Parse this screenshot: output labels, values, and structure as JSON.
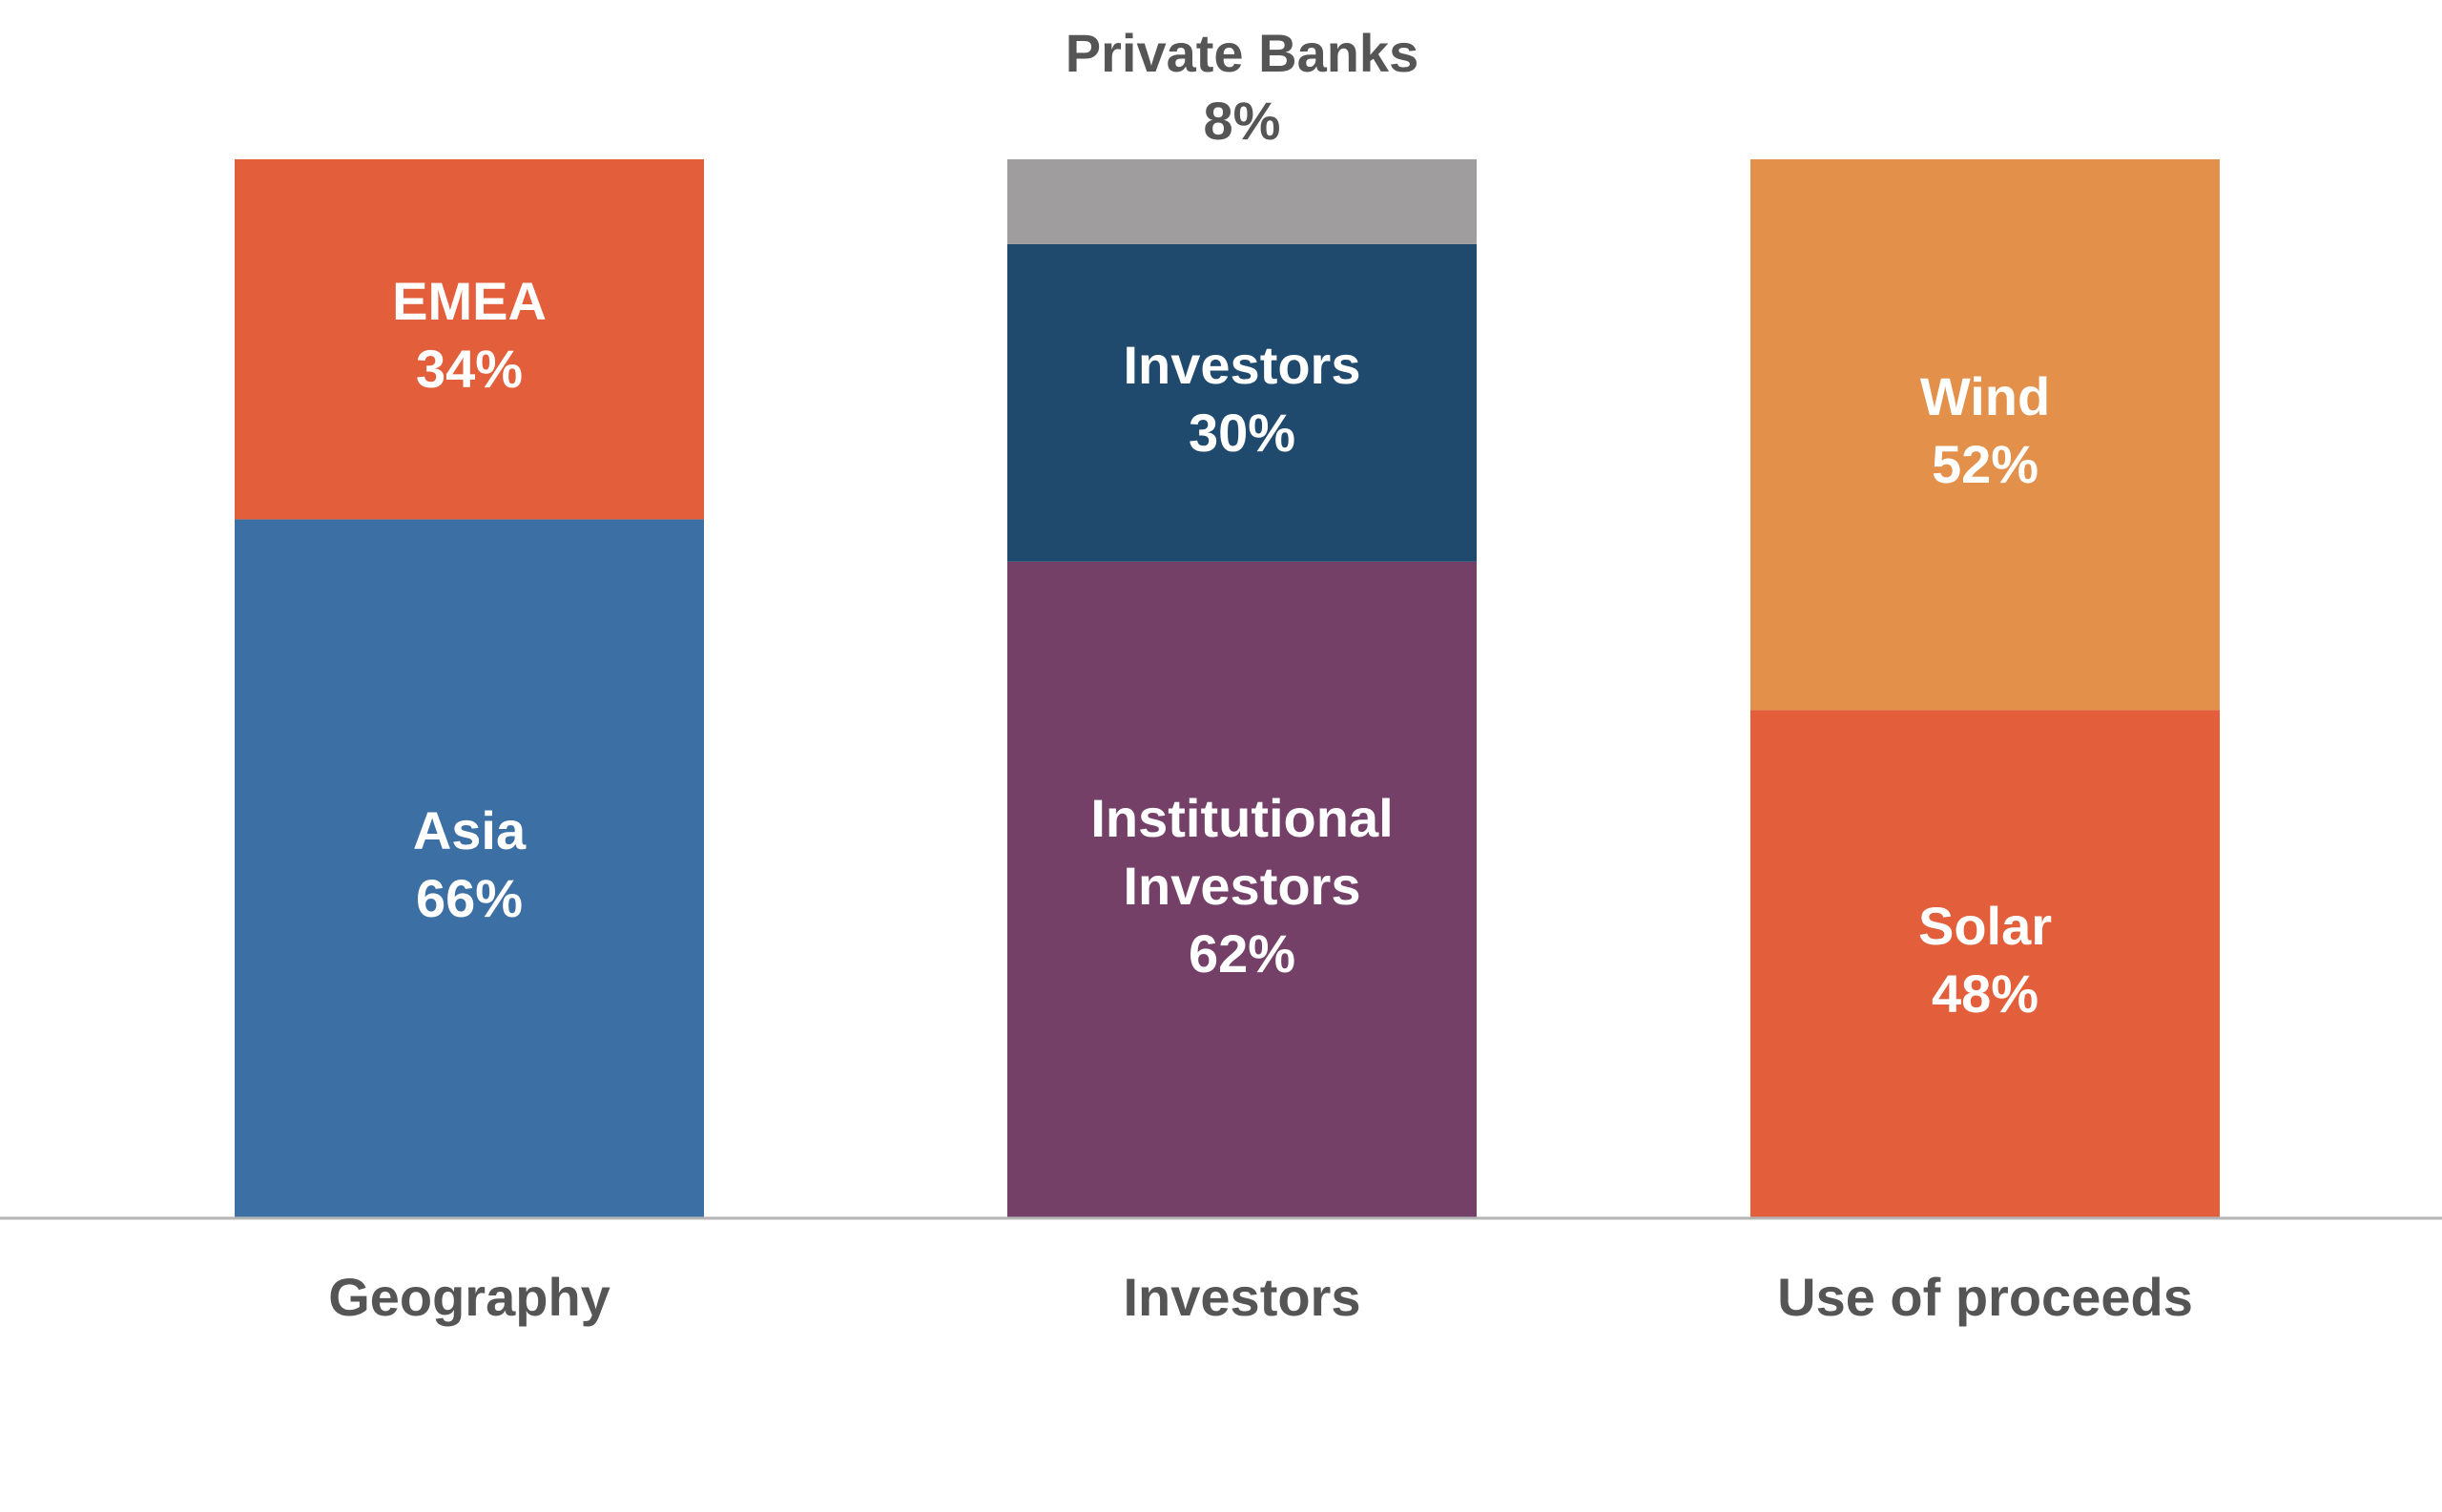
{
  "chart_data": {
    "type": "bar",
    "stacked": true,
    "orientation": "vertical",
    "title": "",
    "xlabel": "",
    "ylabel": "",
    "grid": false,
    "legend": "none",
    "axis_baseline": true,
    "categories": [
      "Geography",
      "Investors",
      "Use of proceeds"
    ],
    "bars": [
      {
        "category": "Geography",
        "segments": [
          {
            "name": "Asia",
            "value": 66,
            "value_label": "66%",
            "color": "#3c6fa3"
          },
          {
            "name": "EMEA",
            "value": 34,
            "value_label": "34%",
            "color": "#e35f3c"
          }
        ]
      },
      {
        "category": "Investors",
        "segments": [
          {
            "name": "Institutional Investors",
            "value": 62,
            "value_label": "62%",
            "color": "#744068"
          },
          {
            "name": "Investors",
            "value": 30,
            "value_label": "30%",
            "color": "#1f4a6e"
          },
          {
            "name": "Private Banks",
            "value": 8,
            "value_label": "8%",
            "color": "#a09d9e",
            "label_position": "above"
          }
        ]
      },
      {
        "category": "Use of proceeds",
        "segments": [
          {
            "name": "Solar",
            "value": 48,
            "value_label": "48%",
            "color": "#e35f3c"
          },
          {
            "name": "Wind",
            "value": 52,
            "value_label": "52%",
            "color": "#e2904a"
          }
        ]
      }
    ],
    "colors": {
      "baseline": "#b5b5b5",
      "label_inside": "#ffffff",
      "label_outside": "#555555"
    }
  }
}
